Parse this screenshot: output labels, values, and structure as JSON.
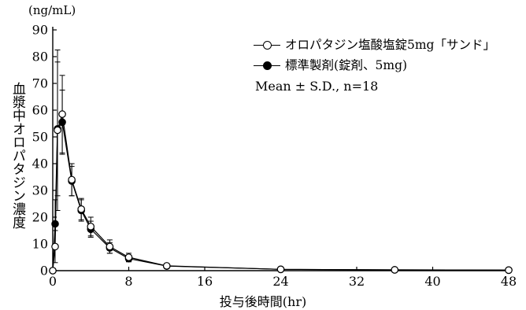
{
  "chart_data": {
    "type": "line",
    "title": "",
    "y_unit": "(ng/mL)",
    "ylabel": "血漿中オロパタジン濃度",
    "xlabel": "投与後時間(hr)",
    "xlim": [
      0,
      48
    ],
    "ylim": [
      0,
      90
    ],
    "x_ticks": [
      0,
      8,
      16,
      24,
      32,
      40,
      48
    ],
    "y_ticks": [
      0,
      10,
      20,
      30,
      40,
      50,
      60,
      70,
      80,
      90
    ],
    "grid": false,
    "legend_position": "top-right",
    "annotation": "Mean ± S.D., n=18",
    "series": [
      {
        "name": "オロパタジン塩酸塩錠5mg「サンド」",
        "marker": "open-circle",
        "x": [
          0,
          0.25,
          0.5,
          1,
          2,
          3,
          4,
          6,
          8,
          12,
          24,
          36,
          48
        ],
        "y": [
          0,
          9,
          52.5,
          58.5,
          34,
          23,
          16.5,
          9,
          5,
          1.8,
          0.5,
          0.3,
          0.2
        ],
        "sd": [
          0,
          6,
          30,
          14.5,
          6,
          4,
          3.5,
          2.5,
          1.5,
          0.5,
          0.2,
          0.1,
          0.1
        ]
      },
      {
        "name": "標準製剤(錠剤、5mg)",
        "marker": "filled-circle",
        "x": [
          0,
          0.25,
          0.5,
          1,
          2,
          3,
          4,
          6,
          8,
          12,
          24,
          36,
          48
        ],
        "y": [
          0,
          17.5,
          53,
          55.5,
          33.5,
          22.5,
          15.5,
          8.5,
          4.5,
          1.7,
          0.5,
          0.3,
          0.2
        ],
        "sd": [
          0,
          9,
          25,
          12,
          5.5,
          4,
          3,
          2,
          1.2,
          0.5,
          0.2,
          0.1,
          0.1
        ]
      }
    ]
  }
}
